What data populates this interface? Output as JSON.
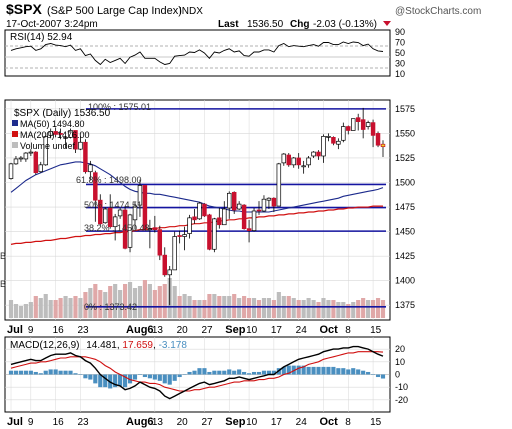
{
  "header": {
    "symbol": "$SPX",
    "name": "(S&P 500 Large Cap Index)",
    "exchange": "INDX",
    "date": "17-Oct-2007 3:24pm",
    "last_label": "Last",
    "last_value": "1536.50",
    "chg_label": "Chg",
    "chg_value": "-2.03 (-0.13%)",
    "watermark": "@StockCharts.com"
  },
  "colors": {
    "background": "#ffffff",
    "grid": "#d8d8d8",
    "frame": "#000000",
    "up_candle": "#ffffff",
    "down_candle": "#c8102e",
    "last_candle": "#f2e21a",
    "ma50": "#1c2a8c",
    "ma200": "#d01010",
    "fib_lines": "#1414a0",
    "volume": "#bdbdbd",
    "volume_down": "#e0a8a8",
    "macd_line": "#000000",
    "macd_signal": "#d01010",
    "macd_hist": "#4a8fc0",
    "rsi_line": "#000000"
  },
  "rsi": {
    "label": "RSI(14) 52.94",
    "axis_ticks": [
      "90",
      "70",
      "50",
      "30",
      "10"
    ]
  },
  "main": {
    "title": "$SPX (Daily) 1536.50",
    "legend": [
      {
        "name": "MA(50) 1494.80",
        "color": "#1c2a8c"
      },
      {
        "name": "MA(200) 1476.00",
        "color": "#d01010"
      },
      {
        "name": "Volume undef",
        "color": "#bdbdbd"
      }
    ],
    "fib_labels": [
      "100% : 1575.01",
      "61.8% : 1498.00",
      "50% : 1474.51",
      "38.2% : 1450.48",
      "0% : 1373.42"
    ],
    "y_ticks": [
      "1575",
      "1550",
      "1525",
      "1500",
      "1475",
      "1450",
      "1425",
      "1400",
      "1375"
    ],
    "left_edge_labels": [
      "B",
      "B"
    ]
  },
  "macd": {
    "label_prefix": "MACD(12,26,9)",
    "value_macd": "14.481",
    "value_signal": "17.659",
    "value_hist": "-3.178",
    "axis_ticks": [
      "20",
      "10",
      "0",
      "-10",
      "-20"
    ]
  },
  "x_axis": {
    "ticks": [
      "Jul",
      "9",
      "16",
      "23",
      "Aug6",
      "13",
      "20",
      "27",
      "Sep",
      "10",
      "17",
      "24",
      "Oct",
      "8",
      "15"
    ]
  },
  "chart_data": {
    "type": "candlestick",
    "title": "$SPX (Daily) 1536.50",
    "x": [
      "Jul 2",
      "Jul 3",
      "Jul 5",
      "Jul 6",
      "Jul 9",
      "Jul 10",
      "Jul 11",
      "Jul 12",
      "Jul 13",
      "Jul 16",
      "Jul 17",
      "Jul 18",
      "Jul 19",
      "Jul 20",
      "Jul 23",
      "Jul 24",
      "Jul 25",
      "Jul 26",
      "Jul 27",
      "Jul 30",
      "Jul 31",
      "Aug 1",
      "Aug 2",
      "Aug 3",
      "Aug 6",
      "Aug 7",
      "Aug 8",
      "Aug 9",
      "Aug 10",
      "Aug 13",
      "Aug 14",
      "Aug 15",
      "Aug 16",
      "Aug 17",
      "Aug 20",
      "Aug 21",
      "Aug 22",
      "Aug 23",
      "Aug 24",
      "Aug 27",
      "Aug 28",
      "Aug 29",
      "Aug 30",
      "Aug 31",
      "Sep 4",
      "Sep 5",
      "Sep 6",
      "Sep 7",
      "Sep 10",
      "Sep 11",
      "Sep 12",
      "Sep 13",
      "Sep 14",
      "Sep 17",
      "Sep 18",
      "Sep 19",
      "Sep 20",
      "Sep 21",
      "Sep 24",
      "Sep 25",
      "Sep 26",
      "Sep 27",
      "Sep 28",
      "Oct 1",
      "Oct 2",
      "Oct 3",
      "Oct 4",
      "Oct 5",
      "Oct 8",
      "Oct 9",
      "Oct 10",
      "Oct 11",
      "Oct 12",
      "Oct 15",
      "Oct 16",
      "Oct 17"
    ],
    "open": [
      1504,
      1519,
      1524,
      1524,
      1530,
      1531,
      1511,
      1518,
      1548,
      1552,
      1550,
      1546,
      1546,
      1553,
      1534,
      1541,
      1511,
      1510,
      1482,
      1459,
      1474,
      1455,
      1466,
      1472,
      1434,
      1462,
      1477,
      1497,
      1453,
      1454,
      1452,
      1426,
      1406,
      1411,
      1446,
      1445,
      1448,
      1465,
      1463,
      1478,
      1467,
      1432,
      1464,
      1457,
      1474,
      1490,
      1473,
      1477,
      1453,
      1451,
      1472,
      1471,
      1482,
      1484,
      1476,
      1520,
      1528,
      1518,
      1525,
      1516,
      1518,
      1527,
      1531,
      1527,
      1547,
      1546,
      1539,
      1543,
      1557,
      1553,
      1566,
      1564,
      1557,
      1561,
      1550,
      1539
    ],
    "close": [
      1519,
      1524,
      1525,
      1530,
      1531,
      1510,
      1518,
      1547,
      1552,
      1549,
      1549,
      1546,
      1553,
      1534,
      1541,
      1511,
      1518,
      1482,
      1458,
      1473,
      1455,
      1465,
      1472,
      1433,
      1467,
      1476,
      1497,
      1453,
      1453,
      1452,
      1426,
      1406,
      1411,
      1445,
      1445,
      1447,
      1464,
      1462,
      1479,
      1466,
      1432,
      1463,
      1457,
      1473,
      1489,
      1472,
      1478,
      1453,
      1451,
      1471,
      1471,
      1483,
      1484,
      1476,
      1519,
      1529,
      1518,
      1525,
      1518,
      1517,
      1525,
      1531,
      1527,
      1547,
      1547,
      1540,
      1542,
      1557,
      1553,
      1565,
      1562,
      1554,
      1561,
      1548,
      1538,
      1536.5
    ],
    "high": [
      1520,
      1527,
      1527,
      1531,
      1534,
      1532,
      1521,
      1548,
      1555,
      1556,
      1555,
      1547,
      1555,
      1553,
      1547,
      1544,
      1522,
      1512,
      1488,
      1475,
      1488,
      1468,
      1474,
      1476,
      1468,
      1480,
      1503,
      1497,
      1462,
      1466,
      1456,
      1434,
      1415,
      1450,
      1451,
      1455,
      1467,
      1473,
      1480,
      1479,
      1468,
      1464,
      1474,
      1481,
      1491,
      1491,
      1481,
      1478,
      1462,
      1474,
      1481,
      1487,
      1485,
      1485,
      1520,
      1530,
      1530,
      1526,
      1530,
      1522,
      1527,
      1532,
      1533,
      1549,
      1550,
      1547,
      1545,
      1561,
      1558,
      1565,
      1570,
      1576,
      1563,
      1564,
      1552,
      1543
    ],
    "low": [
      1503,
      1518,
      1521,
      1521,
      1527,
      1508,
      1510,
      1517,
      1545,
      1546,
      1544,
      1535,
      1545,
      1530,
      1533,
      1509,
      1502,
      1460,
      1456,
      1458,
      1453,
      1441,
      1463,
      1432,
      1429,
      1452,
      1465,
      1452,
      1433,
      1449,
      1421,
      1404,
      1375,
      1411,
      1438,
      1431,
      1443,
      1458,
      1462,
      1465,
      1431,
      1429,
      1453,
      1457,
      1463,
      1468,
      1472,
      1452,
      1439,
      1450,
      1467,
      1470,
      1473,
      1470,
      1476,
      1517,
      1516,
      1515,
      1514,
      1509,
      1515,
      1525,
      1523,
      1520,
      1542,
      1538,
      1534,
      1541,
      1549,
      1553,
      1553,
      1545,
      1554,
      1536,
      1536,
      1526
    ],
    "ma50": [
      1490,
      1494,
      1498,
      1502,
      1505,
      1508,
      1510,
      1512,
      1514,
      1516,
      1518,
      1519,
      1520,
      1521,
      1521,
      1520,
      1519,
      1517,
      1514,
      1511,
      1508,
      1504,
      1500,
      1496,
      1493,
      1491,
      1490,
      1489,
      1489,
      1488,
      1488,
      1487,
      1486,
      1485,
      1484,
      1483,
      1482,
      1481,
      1480,
      1478,
      1476,
      1475,
      1474,
      1473,
      1472,
      1471,
      1471,
      1470,
      1470,
      1470,
      1470,
      1470,
      1470,
      1471,
      1472,
      1473,
      1474,
      1475,
      1476,
      1477,
      1478,
      1479,
      1480,
      1481,
      1482,
      1483,
      1484,
      1486,
      1487,
      1488,
      1489,
      1490,
      1491,
      1492,
      1493,
      1494.8
    ],
    "ma200": [
      1437,
      1438,
      1438,
      1439,
      1439,
      1440,
      1440,
      1441,
      1441,
      1442,
      1443,
      1443,
      1444,
      1445,
      1445,
      1446,
      1446,
      1447,
      1447,
      1448,
      1448,
      1449,
      1449,
      1450,
      1450,
      1451,
      1452,
      1452,
      1453,
      1453,
      1454,
      1454,
      1455,
      1455,
      1456,
      1456,
      1457,
      1458,
      1458,
      1459,
      1459,
      1460,
      1461,
      1461,
      1462,
      1462,
      1463,
      1463,
      1464,
      1464,
      1465,
      1465,
      1466,
      1466,
      1467,
      1467,
      1468,
      1468,
      1469,
      1469,
      1470,
      1470,
      1471,
      1471,
      1472,
      1472,
      1473,
      1473,
      1474,
      1474,
      1475,
      1475,
      1475,
      1476,
      1476,
      1476
    ],
    "volume_rel": [
      0.45,
      0.35,
      0.3,
      0.35,
      0.4,
      0.55,
      0.5,
      0.6,
      0.45,
      0.45,
      0.5,
      0.55,
      0.5,
      0.55,
      0.5,
      0.65,
      0.75,
      0.85,
      0.7,
      0.65,
      0.8,
      0.85,
      0.7,
      0.85,
      0.9,
      0.75,
      0.8,
      0.95,
      0.85,
      0.7,
      0.8,
      0.85,
      1.0,
      0.8,
      0.55,
      0.6,
      0.55,
      0.45,
      0.45,
      0.45,
      0.6,
      0.6,
      0.55,
      0.55,
      0.55,
      0.6,
      0.5,
      0.55,
      0.5,
      0.5,
      0.45,
      0.5,
      0.5,
      0.45,
      0.65,
      0.55,
      0.55,
      0.5,
      0.45,
      0.45,
      0.5,
      0.45,
      0.4,
      0.5,
      0.45,
      0.45,
      0.4,
      0.4,
      0.35,
      0.4,
      0.45,
      0.5,
      0.45,
      0.45,
      0.5,
      0.45
    ],
    "rsi": [
      55,
      58,
      60,
      62,
      63,
      55,
      58,
      66,
      68,
      65,
      64,
      62,
      65,
      55,
      58,
      45,
      48,
      36,
      28,
      38,
      32,
      36,
      40,
      30,
      42,
      46,
      52,
      40,
      40,
      40,
      33,
      28,
      30,
      44,
      45,
      46,
      52,
      51,
      56,
      50,
      40,
      52,
      50,
      55,
      58,
      52,
      54,
      45,
      44,
      52,
      52,
      56,
      56,
      52,
      64,
      68,
      62,
      64,
      63,
      62,
      64,
      66,
      63,
      70,
      70,
      66,
      66,
      71,
      68,
      71,
      70,
      64,
      67,
      58,
      54,
      52.94
    ],
    "macd_line": [
      8,
      9,
      10,
      11,
      12,
      11,
      11,
      13,
      15,
      16,
      16,
      16,
      17,
      15,
      14,
      11,
      9,
      5,
      0,
      -3,
      -6,
      -8,
      -9,
      -12,
      -11,
      -9,
      -6,
      -8,
      -10,
      -11,
      -13,
      -17,
      -19,
      -17,
      -15,
      -13,
      -11,
      -9,
      -7,
      -6,
      -8,
      -7,
      -6,
      -5,
      -3,
      -3,
      -2,
      -3,
      -4,
      -3,
      -2,
      -1,
      0,
      0,
      3,
      6,
      8,
      10,
      12,
      13,
      14,
      15,
      16,
      18,
      19,
      20,
      20,
      21,
      21,
      22,
      22,
      21,
      20,
      18,
      16,
      14.481
    ],
    "macd_signal": [
      5,
      6,
      7,
      8,
      9,
      9,
      10,
      10,
      11,
      12,
      13,
      13,
      14,
      14,
      14,
      14,
      13,
      12,
      10,
      7,
      5,
      2,
      0,
      -2,
      -4,
      -5,
      -6,
      -6,
      -7,
      -7,
      -8,
      -10,
      -11,
      -12,
      -13,
      -13,
      -13,
      -12,
      -12,
      -11,
      -10,
      -10,
      -9,
      -8,
      -7,
      -6,
      -6,
      -5,
      -5,
      -5,
      -4,
      -4,
      -3,
      -3,
      -2,
      0,
      1,
      3,
      5,
      6,
      8,
      9,
      10,
      12,
      13,
      14,
      15,
      16,
      17,
      17,
      18,
      18,
      18,
      18,
      18,
      17.659
    ],
    "rsi_ylim": [
      10,
      90
    ],
    "price_ylim": [
      1362,
      1582
    ],
    "macd_ylim": [
      -28,
      28
    ]
  }
}
